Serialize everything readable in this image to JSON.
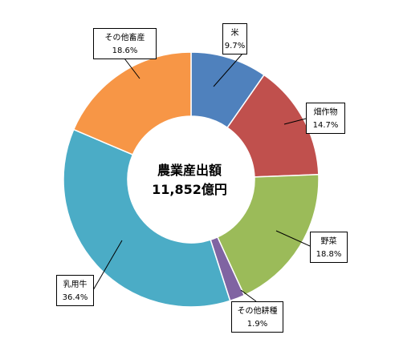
{
  "chart_data": {
    "type": "pie",
    "style": "doughnut",
    "center_text": [
      "農業産出額",
      "11,852億円"
    ],
    "direction": "clockwise",
    "start": "top",
    "colors": [
      "#4F81BD",
      "#C0504D",
      "#9BBB59",
      "#8064A2",
      "#4BACC6",
      "#F79646"
    ],
    "categories": [
      "米",
      "畑作物",
      "野菜",
      "その他耕種",
      "乳用牛",
      "その他畜産"
    ],
    "values": [
      9.7,
      14.7,
      18.8,
      1.9,
      36.4,
      18.6
    ],
    "labels": [
      "9.7%",
      "14.7%",
      "18.8%",
      "1.9%",
      "36.4%",
      "18.6%"
    ]
  }
}
